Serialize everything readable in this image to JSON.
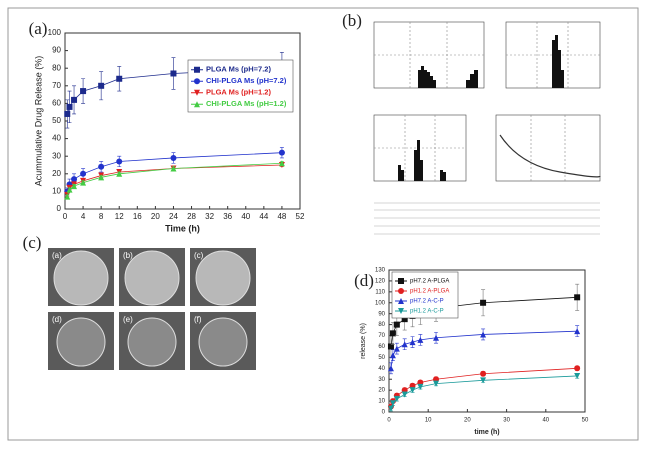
{
  "panel_labels": [
    "(a)",
    "(b)",
    "(c)",
    "(d)"
  ],
  "sem_labels": [
    "(a)",
    "(b)",
    "(c)",
    "(d)",
    "(e)",
    "(f)"
  ],
  "chart_data": [
    {
      "type": "line",
      "xlabel": "Time (h)",
      "ylabel": "Acummulative Drug Release (%)",
      "xlim": [
        0,
        52
      ],
      "xticks": [
        0,
        4,
        8,
        12,
        16,
        20,
        24,
        28,
        32,
        36,
        40,
        44,
        48,
        52
      ],
      "ylim": [
        0,
        100
      ],
      "yticks": [
        0,
        10,
        20,
        30,
        40,
        50,
        60,
        70,
        80,
        90,
        100
      ],
      "x": [
        0.5,
        1,
        2,
        4,
        8,
        12,
        24,
        48
      ],
      "series": [
        {
          "name": "PLGA Ms (pH=7.2)",
          "color": "#1c2a8c",
          "marker": "square",
          "values": [
            54,
            58,
            62,
            67,
            70,
            74,
            77,
            80
          ],
          "errors": [
            8,
            9,
            8,
            7,
            8,
            7,
            9,
            9
          ]
        },
        {
          "name": "CHI-PLGA Ms (pH=7.2)",
          "color": "#2233cc",
          "marker": "circle",
          "values": [
            10,
            14,
            17,
            20,
            24,
            27,
            29,
            32
          ],
          "errors": [
            2,
            3,
            3,
            3,
            3,
            3,
            3,
            3
          ]
        },
        {
          "name": "PLGA Ms (pH=1.2)",
          "color": "#e02020",
          "marker": "triangle-down",
          "values": [
            8,
            12,
            14,
            16,
            19,
            21,
            23,
            25
          ],
          "errors": [
            1,
            1,
            1,
            1,
            1,
            1,
            1,
            1
          ]
        },
        {
          "name": "CHI-PLGA Ms (pH=1.2)",
          "color": "#44cc44",
          "marker": "triangle-up",
          "values": [
            7,
            11,
            13,
            15,
            18,
            20,
            23,
            26
          ],
          "errors": [
            1,
            1,
            1,
            1,
            1,
            1,
            1,
            1
          ]
        }
      ]
    },
    {
      "type": "line",
      "xlabel": "time (h)",
      "ylabel": "release (%)",
      "xlim": [
        0,
        50
      ],
      "xticks": [
        0,
        10,
        20,
        30,
        40,
        50
      ],
      "ylim": [
        0,
        130
      ],
      "yticks": [
        0,
        10,
        20,
        30,
        40,
        50,
        60,
        70,
        80,
        90,
        100,
        110,
        120,
        130
      ],
      "x": [
        0.5,
        1,
        2,
        4,
        6,
        8,
        12,
        24,
        48
      ],
      "series": [
        {
          "name": "pH7.2  A-PLGA",
          "color": "#111111",
          "marker": "square",
          "values": [
            60,
            72,
            80,
            85,
            88,
            90,
            95,
            100,
            105
          ],
          "errors": [
            10,
            10,
            10,
            10,
            10,
            10,
            12,
            12,
            12
          ]
        },
        {
          "name": "pH1.2  A-PLGA",
          "color": "#e02020",
          "marker": "circle",
          "values": [
            5,
            10,
            15,
            20,
            24,
            27,
            30,
            35,
            40
          ],
          "errors": [
            2,
            2,
            2,
            2,
            2,
            2,
            2,
            2,
            2
          ]
        },
        {
          "name": "pH7.2  A-C-P",
          "color": "#2233cc",
          "marker": "triangle-up",
          "values": [
            40,
            52,
            58,
            62,
            64,
            66,
            68,
            71,
            74
          ],
          "errors": [
            5,
            5,
            5,
            5,
            5,
            5,
            5,
            5,
            5
          ]
        },
        {
          "name": "pH1.2  A-C-P",
          "color": "#1a9a9a",
          "marker": "triangle-down",
          "values": [
            3,
            8,
            12,
            16,
            20,
            23,
            26,
            29,
            33
          ],
          "errors": [
            2,
            2,
            2,
            2,
            2,
            2,
            2,
            2,
            2
          ]
        }
      ]
    }
  ]
}
